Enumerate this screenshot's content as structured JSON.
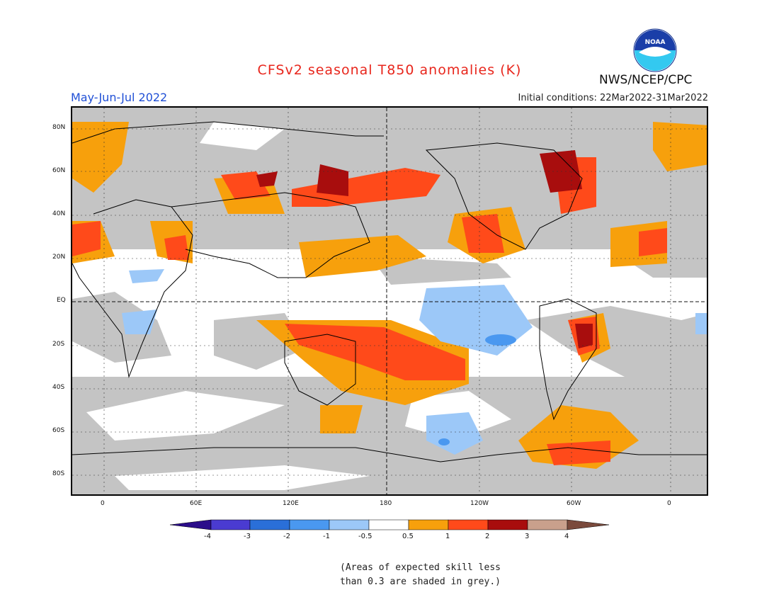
{
  "header": {
    "title": "CFSv2 seasonal T850 anomalies (K)",
    "season": "May-Jun-Jul 2022",
    "initial_conditions": "Initial conditions: 22Mar2022-31Mar2022",
    "organization": "NWS/NCEP/CPC",
    "logo_text": "NOAA"
  },
  "map": {
    "lat_labels": [
      "80N",
      "60N",
      "40N",
      "20N",
      "EQ",
      "20S",
      "40S",
      "60S",
      "80S"
    ],
    "lon_labels": [
      "0",
      "60E",
      "120E",
      "180",
      "120W",
      "60W",
      "0"
    ]
  },
  "legend": {
    "labels": [
      "-4",
      "-3",
      "-2",
      "-1",
      "-0.5",
      "0.5",
      "1",
      "2",
      "3",
      "4"
    ],
    "colors": [
      "#2b0d8a",
      "#4a3bd1",
      "#2a6fd8",
      "#4a98f0",
      "#9cc8f8",
      "#ffffff",
      "#f7a00c",
      "#ff4a1a",
      "#a80d0d",
      "#c9a08c",
      "#7a4a3c"
    ]
  },
  "footnote": {
    "line1": "(Areas of expected skill less",
    "line2": "than 0.3 are shaded in grey.)"
  }
}
